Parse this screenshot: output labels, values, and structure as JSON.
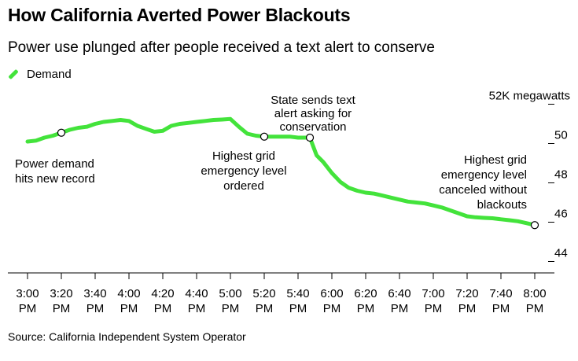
{
  "title": "How California Averted Power Blackouts",
  "subtitle": "Power use plunged after people received a text alert to conserve",
  "source": "Source: California Independent System Operator",
  "chart_data": {
    "type": "line",
    "title": "How California Averted Power Blackouts",
    "xlabel": "",
    "ylabel": "megawatts",
    "ylim": [
      43.5,
      52.5
    ],
    "y_ticks": [
      {
        "value": 52,
        "label": "52K megawatts"
      },
      {
        "value": 50,
        "label": "50"
      },
      {
        "value": 48,
        "label": "48"
      },
      {
        "value": 46,
        "label": "46"
      },
      {
        "value": 44,
        "label": "44"
      }
    ],
    "x_ticks": [
      {
        "value": 0,
        "line1": "3:00",
        "line2": "PM"
      },
      {
        "value": 20,
        "line1": "3:20",
        "line2": "PM"
      },
      {
        "value": 40,
        "line1": "3:40",
        "line2": "PM"
      },
      {
        "value": 60,
        "line1": "4:00",
        "line2": "PM"
      },
      {
        "value": 80,
        "line1": "4:20",
        "line2": "PM"
      },
      {
        "value": 100,
        "line1": "4:40",
        "line2": "PM"
      },
      {
        "value": 120,
        "line1": "5:00",
        "line2": "PM"
      },
      {
        "value": 140,
        "line1": "5:20",
        "line2": "PM"
      },
      {
        "value": 160,
        "line1": "5:40",
        "line2": "PM"
      },
      {
        "value": 180,
        "line1": "6:00",
        "line2": "PM"
      },
      {
        "value": 200,
        "line1": "6:20",
        "line2": "PM"
      },
      {
        "value": 220,
        "line1": "6:40",
        "line2": "PM"
      },
      {
        "value": 240,
        "line1": "7:00",
        "line2": "PM"
      },
      {
        "value": 260,
        "line1": "7:20",
        "line2": "PM"
      },
      {
        "value": 280,
        "line1": "7:40",
        "line2": "PM"
      },
      {
        "value": 300,
        "line1": "8:00",
        "line2": "PM"
      }
    ],
    "series": [
      {
        "name": "Demand",
        "color": "#43e33b",
        "points": [
          [
            0,
            50.1
          ],
          [
            5,
            50.15
          ],
          [
            10,
            50.3
          ],
          [
            15,
            50.4
          ],
          [
            20,
            50.55
          ],
          [
            25,
            50.7
          ],
          [
            30,
            50.8
          ],
          [
            35,
            50.85
          ],
          [
            40,
            51.0
          ],
          [
            45,
            51.1
          ],
          [
            50,
            51.15
          ],
          [
            55,
            51.2
          ],
          [
            60,
            51.15
          ],
          [
            65,
            50.9
          ],
          [
            70,
            50.75
          ],
          [
            75,
            50.6
          ],
          [
            80,
            50.65
          ],
          [
            85,
            50.9
          ],
          [
            90,
            51.0
          ],
          [
            95,
            51.05
          ],
          [
            100,
            51.1
          ],
          [
            105,
            51.15
          ],
          [
            110,
            51.2
          ],
          [
            115,
            51.22
          ],
          [
            120,
            51.25
          ],
          [
            125,
            50.85
          ],
          [
            130,
            50.5
          ],
          [
            135,
            50.4
          ],
          [
            140,
            50.35
          ],
          [
            145,
            50.35
          ],
          [
            150,
            50.35
          ],
          [
            155,
            50.35
          ],
          [
            160,
            50.3
          ],
          [
            167,
            50.3
          ],
          [
            171,
            49.4
          ],
          [
            175,
            49.05
          ],
          [
            180,
            48.5
          ],
          [
            185,
            48.05
          ],
          [
            190,
            47.75
          ],
          [
            195,
            47.6
          ],
          [
            200,
            47.5
          ],
          [
            205,
            47.45
          ],
          [
            210,
            47.35
          ],
          [
            215,
            47.25
          ],
          [
            220,
            47.15
          ],
          [
            225,
            47.05
          ],
          [
            230,
            47.0
          ],
          [
            235,
            46.95
          ],
          [
            240,
            46.85
          ],
          [
            245,
            46.75
          ],
          [
            250,
            46.6
          ],
          [
            255,
            46.45
          ],
          [
            260,
            46.3
          ],
          [
            265,
            46.25
          ],
          [
            270,
            46.22
          ],
          [
            275,
            46.2
          ],
          [
            280,
            46.15
          ],
          [
            285,
            46.1
          ],
          [
            290,
            46.05
          ],
          [
            295,
            45.95
          ],
          [
            300,
            45.85
          ]
        ]
      }
    ],
    "annotations": [
      {
        "id": "record",
        "x": 20,
        "y": 50.55,
        "lines": [
          "Power demand",
          "hits new record"
        ]
      },
      {
        "id": "emergency-ordered",
        "x": 140,
        "y": 50.35,
        "lines": [
          "Highest grid",
          "emergency level",
          "ordered"
        ]
      },
      {
        "id": "text-alert",
        "x": 167,
        "y": 50.3,
        "lines": [
          "State sends text",
          "alert asking for",
          "conservation"
        ]
      },
      {
        "id": "emergency-canceled",
        "x": 300,
        "y": 45.85,
        "lines": [
          "Highest grid",
          "emergency level",
          "canceled without",
          "blackouts"
        ]
      }
    ]
  }
}
